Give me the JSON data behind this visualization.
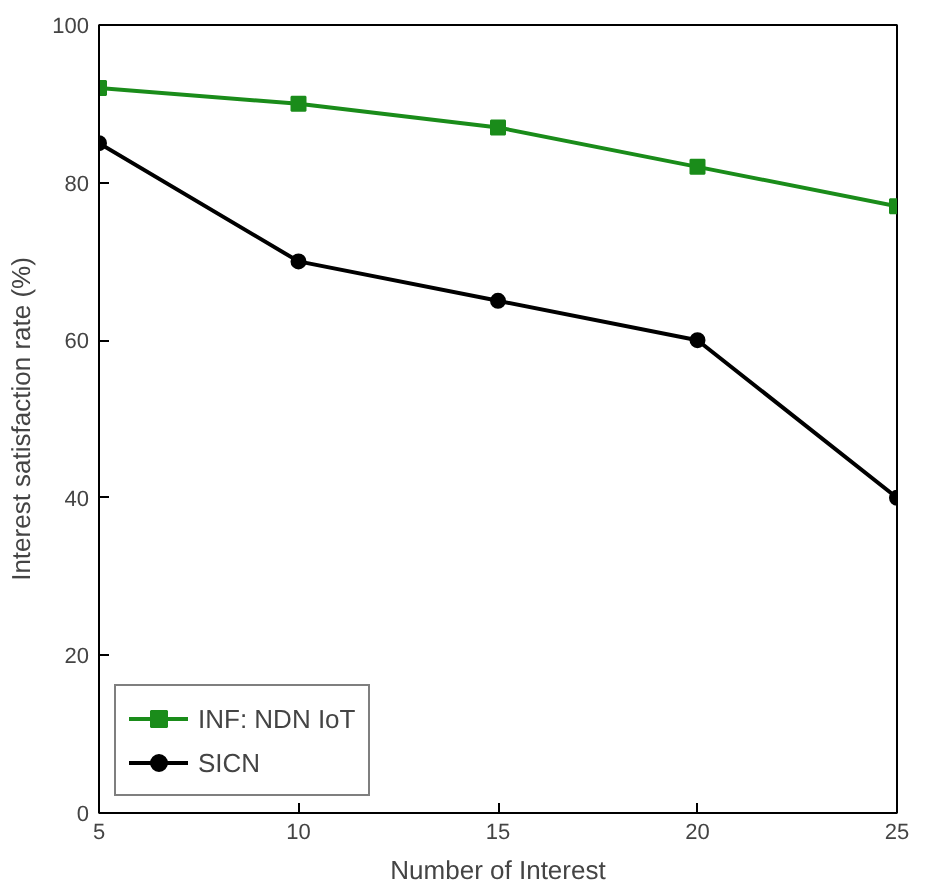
{
  "chart_data": {
    "type": "line",
    "xlabel": "Number of Interest",
    "ylabel": "Interest satisfaction rate (%)",
    "x": [
      5,
      10,
      15,
      20,
      25
    ],
    "series": [
      {
        "name": "INF: NDN IoT",
        "color": "#1a8c1a",
        "values": [
          92,
          90,
          87,
          82,
          77
        ],
        "marker": "square"
      },
      {
        "name": "SICN",
        "color": "#000000",
        "values": [
          85,
          70,
          65,
          60,
          40
        ],
        "marker": "circle"
      }
    ],
    "xlim": [
      5,
      25
    ],
    "ylim": [
      0,
      100
    ],
    "xticks": [
      5,
      10,
      15,
      20,
      25
    ],
    "yticks": [
      0,
      20,
      40,
      60,
      80,
      100
    ],
    "grid": false,
    "legend": "bottom left",
    "line_style": "solid"
  }
}
